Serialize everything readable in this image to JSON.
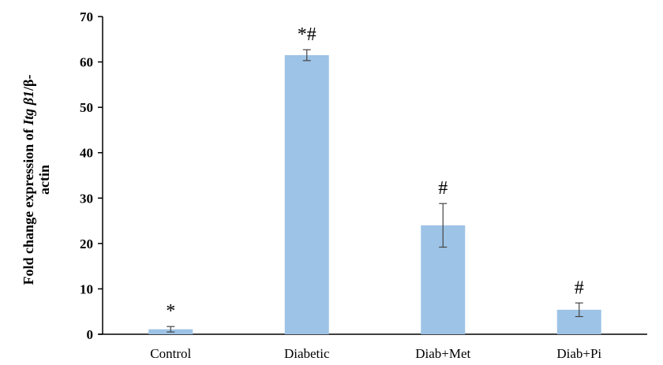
{
  "chart_data": {
    "type": "bar",
    "categories": [
      "Control",
      "Diabetic",
      "Diab+Met",
      "Diab+Pi"
    ],
    "values": [
      1.1,
      61.5,
      24.0,
      5.4
    ],
    "errors": [
      0.6,
      1.2,
      4.8,
      1.5
    ],
    "annotations": [
      "*",
      "*#",
      "#",
      "#"
    ],
    "ylabel_parts": [
      {
        "text": "Fold change expression of ",
        "italic": false
      },
      {
        "text": "Itg β1",
        "italic": true
      },
      {
        "text": "/β-",
        "italic": false
      }
    ],
    "ylabel_line2": "actin",
    "yticks": [
      0,
      10,
      20,
      30,
      40,
      50,
      60,
      70
    ],
    "ylim": [
      0,
      70
    ],
    "bar_color": "#9dc3e6",
    "grid": false,
    "legend": false
  }
}
